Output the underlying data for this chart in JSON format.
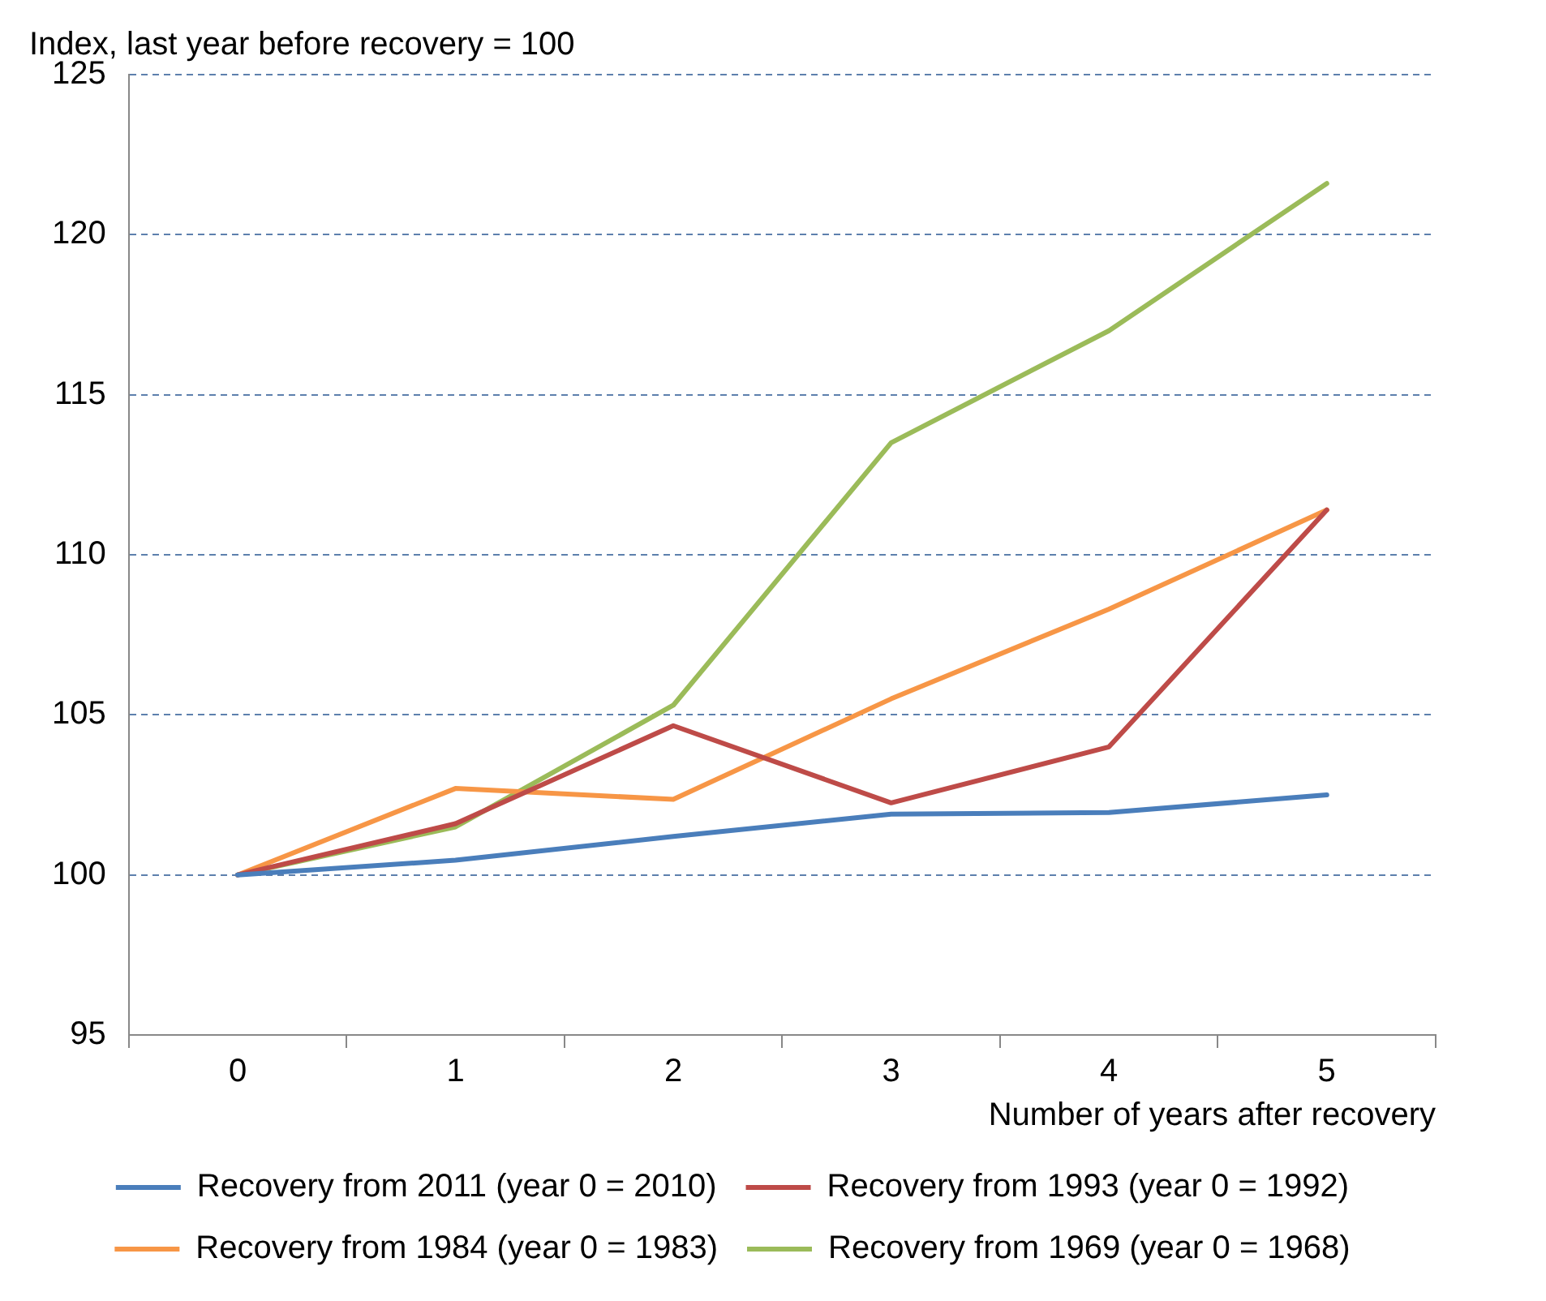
{
  "chart_data": {
    "type": "line",
    "title": "Index, last year before recovery = 100",
    "xlabel": "Number of years after recovery",
    "categories": [
      "0",
      "1",
      "2",
      "3",
      "4",
      "5"
    ],
    "series": [
      {
        "name": "Recovery from 2011 (year 0 = 2010)",
        "color": "#4a7ebb",
        "values": [
          100,
          100.46,
          101.2,
          101.9,
          101.95,
          102.5
        ]
      },
      {
        "name": "Recovery from 1993 (year 0 = 1992)",
        "color": "#be4b48",
        "values": [
          100,
          101.6,
          104.66,
          102.25,
          104.0,
          111.4
        ]
      },
      {
        "name": "Recovery from 1984 (year 0 = 1983)",
        "color": "#f79646",
        "values": [
          100,
          102.7,
          102.36,
          105.5,
          108.3,
          111.4
        ]
      },
      {
        "name": "Recovery from 1969 (year 0 = 1968)",
        "color": "#9bbb59",
        "values": [
          100,
          101.5,
          105.3,
          113.5,
          117.0,
          121.6
        ]
      }
    ],
    "ylim": [
      95,
      125
    ],
    "yticks": [
      95,
      100,
      105,
      110,
      115,
      120,
      125
    ],
    "grid": "y",
    "legend": "bottom",
    "marker": "none",
    "line_style": "solid"
  }
}
